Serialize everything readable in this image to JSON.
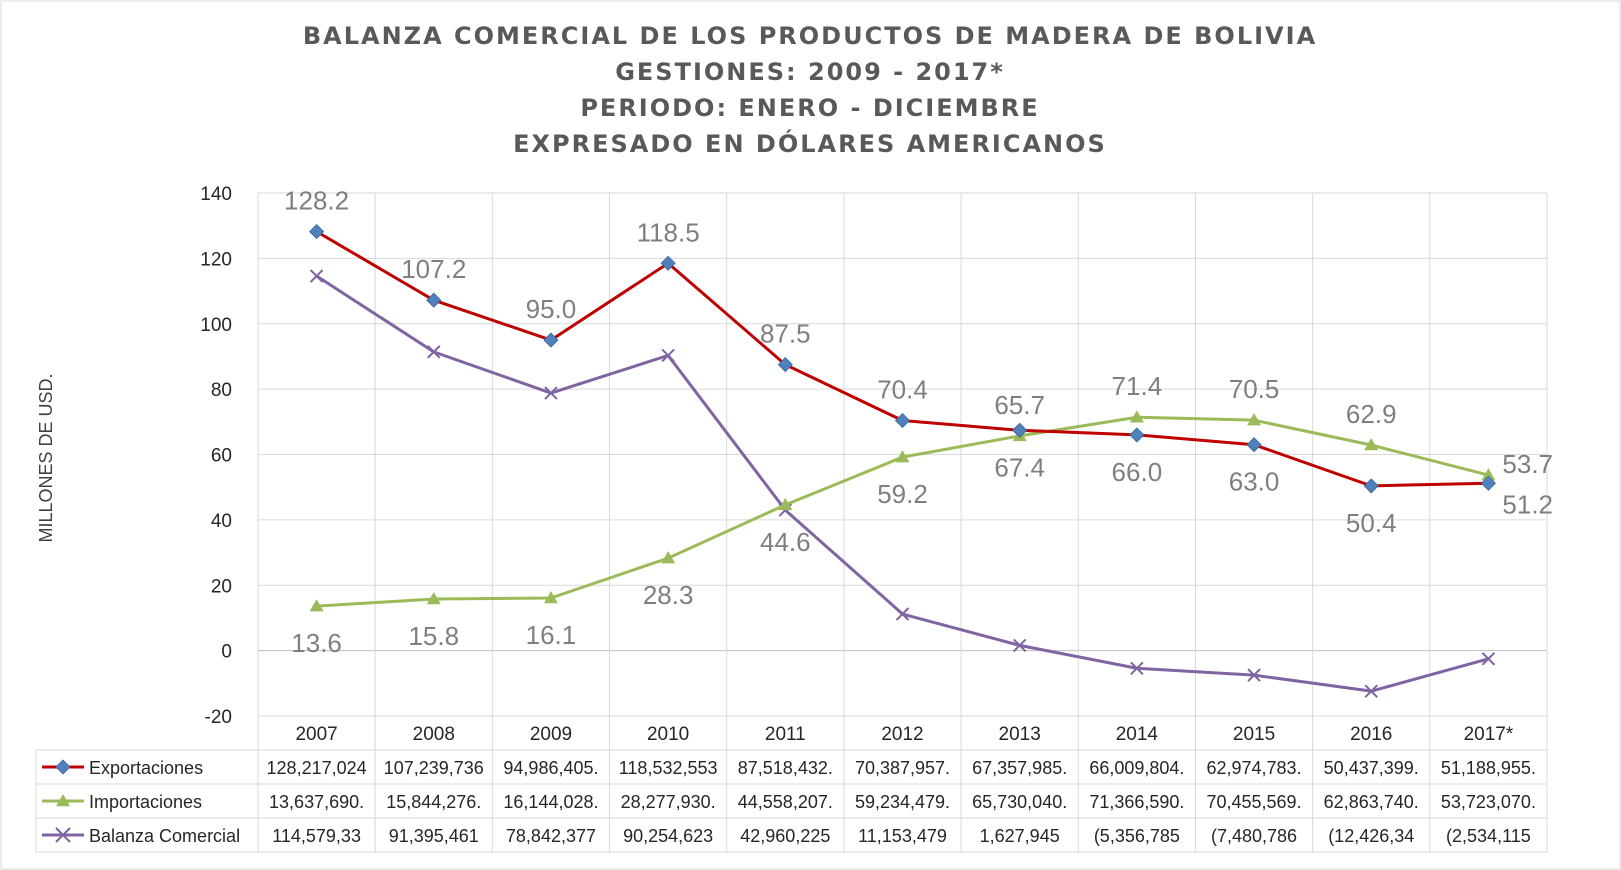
{
  "chart_data": {
    "type": "line",
    "title_lines": [
      "BALANZA COMERCIAL DE LOS PRODUCTOS DE MADERA DE BOLIVIA",
      "GESTIONES: 2009 - 2017*",
      "PERIODO: ENERO - DICIEMBRE",
      "EXPRESADO EN DÓLARES AMERICANOS"
    ],
    "ylabel": "MILLONES DE USD.",
    "ylim": [
      -20,
      140
    ],
    "yticks": [
      -20,
      0,
      20,
      40,
      60,
      80,
      100,
      120,
      140
    ],
    "grid": true,
    "legend_placement": "data-table-left",
    "categories": [
      "2007",
      "2008",
      "2009",
      "2010",
      "2011",
      "2012",
      "2013",
      "2014",
      "2015",
      "2016",
      "2017*"
    ],
    "series": [
      {
        "name": "Exportaciones",
        "color": "#c00000",
        "marker": "diamond",
        "marker_color": "#4f81bd",
        "values": [
          128.2,
          107.2,
          95.0,
          118.5,
          87.5,
          70.4,
          67.4,
          66.0,
          63.0,
          50.4,
          51.2
        ],
        "labels": [
          "128.2",
          "107.2",
          "95.0",
          "118.5",
          "87.5",
          "70.4",
          "67.4",
          "66.0",
          "63.0",
          "50.4",
          "51.2"
        ],
        "table": [
          "128,217,024",
          "107,239,736",
          "94,986,405.",
          "118,532,553",
          "87,518,432.",
          "70,387,957.",
          "67,357,985.",
          "66,009,804.",
          "62,974,783.",
          "50,437,399.",
          "51,188,955."
        ]
      },
      {
        "name": "Importaciones",
        "color": "#9bbb59",
        "marker": "triangle",
        "marker_color": "#9bbb59",
        "values": [
          13.6,
          15.8,
          16.1,
          28.3,
          44.6,
          59.2,
          65.7,
          71.4,
          70.5,
          62.9,
          53.7
        ],
        "labels": [
          "13.6",
          "15.8",
          "16.1",
          "28.3",
          "44.6",
          "59.2",
          "65.7",
          "71.4",
          "70.5",
          "62.9",
          "53.7"
        ],
        "table": [
          "13,637,690.",
          "15,844,276.",
          "16,144,028.",
          "28,277,930.",
          "44,558,207.",
          "59,234,479.",
          "65,730,040.",
          "71,366,590.",
          "70,455,569.",
          "62,863,740.",
          "53,723,070."
        ]
      },
      {
        "name": "Balanza Comercial",
        "color": "#8064a2",
        "marker": "x",
        "marker_color": "#8064a2",
        "values": [
          114.6,
          91.4,
          78.8,
          90.3,
          43.0,
          11.2,
          1.6,
          -5.4,
          -7.5,
          -12.4,
          -2.5
        ],
        "table": [
          "114,579,33",
          "91,395,461",
          "78,842,377",
          "90,254,623",
          "42,960,225",
          "11,153,479",
          "1,627,945",
          "(5,356,785",
          "(7,480,786",
          "(12,426,34",
          "(2,534,115"
        ]
      }
    ]
  }
}
